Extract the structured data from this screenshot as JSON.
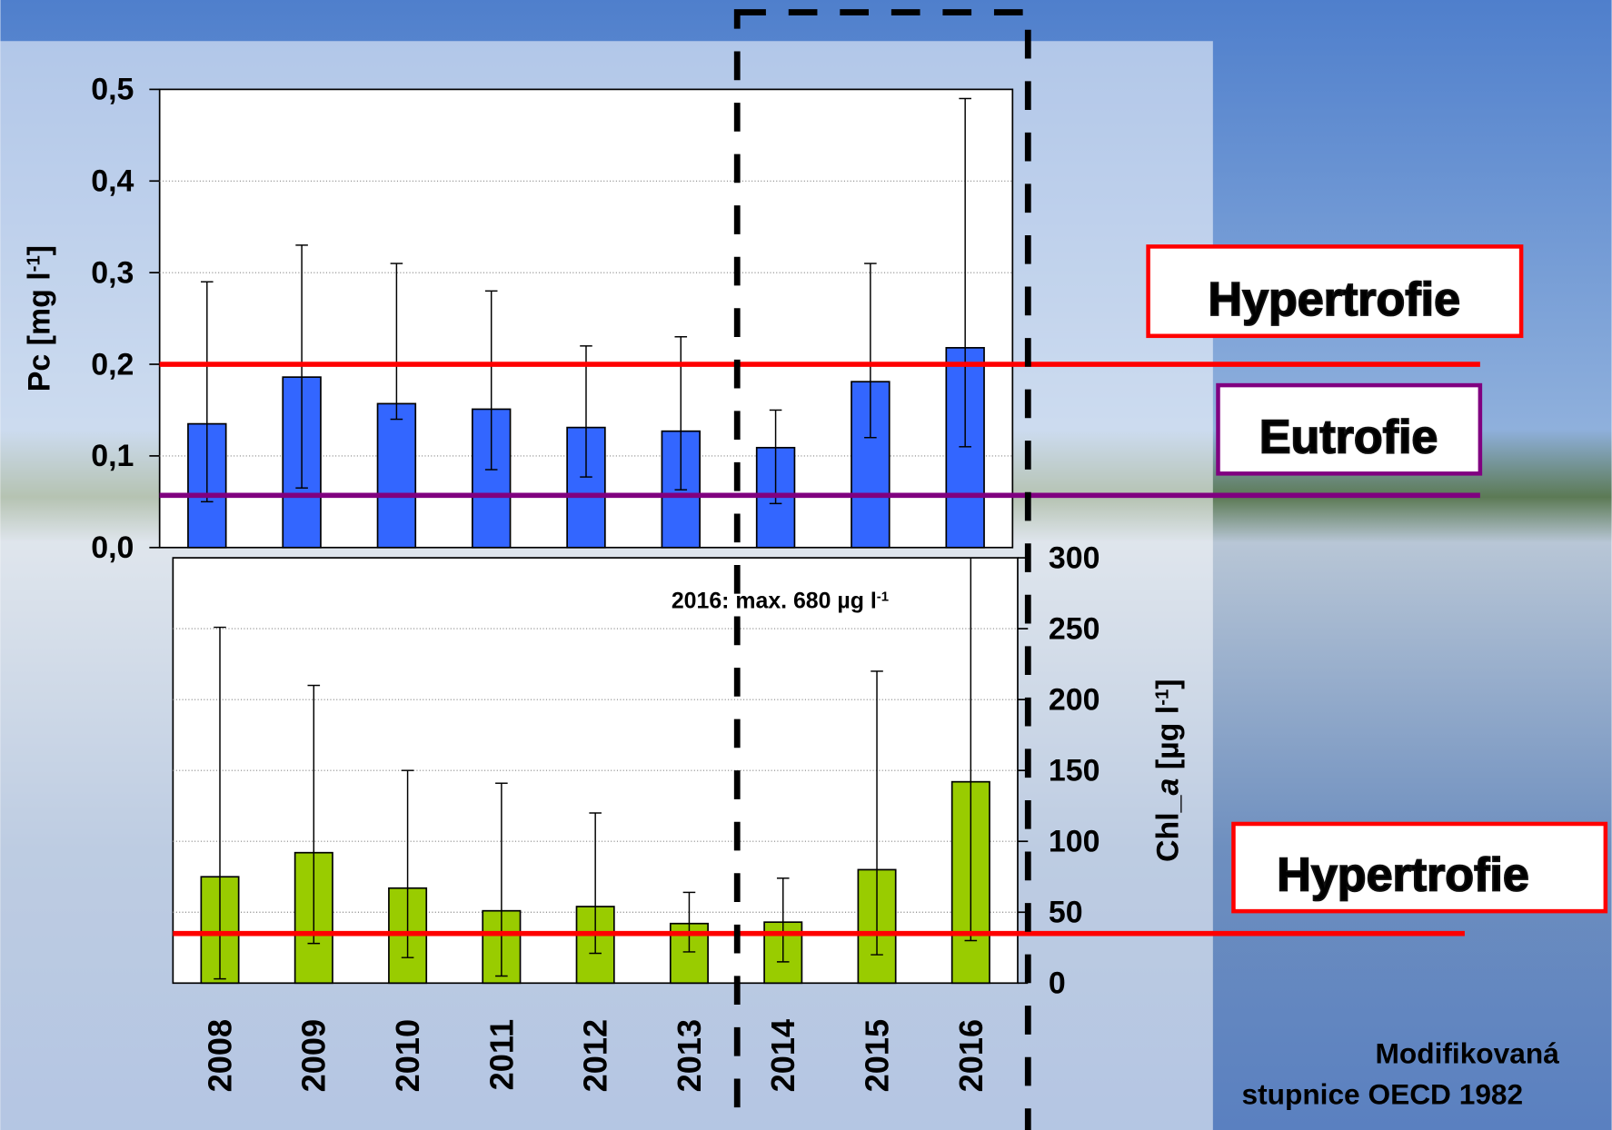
{
  "chart_data": [
    {
      "type": "bar",
      "ylabel": [
        "Pc [mg l",
        "-1",
        "]"
      ],
      "values": [
        0.135,
        0.186,
        0.157,
        0.151,
        0.131,
        0.127,
        0.109,
        0.181,
        0.218
      ],
      "error_low": [
        0.05,
        0.065,
        0.14,
        0.085,
        0.077,
        0.063,
        0.048,
        0.12,
        0.11
      ],
      "error_high": [
        0.29,
        0.33,
        0.31,
        0.28,
        0.22,
        0.23,
        0.15,
        0.31,
        0.49
      ],
      "color": "#3366ff",
      "ylim": [
        0,
        0.5
      ],
      "yticks": [
        {
          "value": 0,
          "label": "0,0"
        },
        {
          "value": 0.1,
          "label": "0,1"
        },
        {
          "value": 0.2,
          "label": "0,2"
        },
        {
          "value": 0.3,
          "label": "0,3"
        },
        {
          "value": 0.4,
          "label": "0,4"
        },
        {
          "value": 0.5,
          "label": "0,5"
        }
      ],
      "grid": true,
      "thresholds": [
        {
          "name": "Hypertrofie",
          "value": 0.2,
          "color": "#ff0000"
        },
        {
          "name": "Eutrofie",
          "value": 0.057,
          "color": "#800080"
        }
      ]
    },
    {
      "type": "bar",
      "ylabel": [
        "Chl_",
        "a",
        " [µg l",
        "-1",
        "]"
      ],
      "categories": [
        "2008",
        "2009",
        "2010",
        "2011",
        "2012",
        "2013",
        "2014",
        "2015",
        "2016"
      ],
      "values": [
        75,
        92,
        67,
        51,
        54,
        42,
        43,
        80,
        142
      ],
      "error_low": [
        3,
        28,
        18,
        5,
        21,
        22,
        15,
        20,
        30
      ],
      "error_high": [
        251,
        210,
        150,
        141,
        120,
        64,
        74,
        220,
        680
      ],
      "color": "#99cc00",
      "ylim": [
        0,
        300
      ],
      "yticks": [
        0,
        50,
        100,
        150,
        200,
        250,
        300
      ],
      "grid": true,
      "annotation": [
        "2016: max. 680 µg l",
        "-1"
      ],
      "thresholds": [
        {
          "name": "Hypertrofie",
          "value": 35,
          "color": "#ff0000"
        }
      ]
    }
  ],
  "note": [
    "Modifikovaná",
    "stupnice OECD 1982"
  ]
}
